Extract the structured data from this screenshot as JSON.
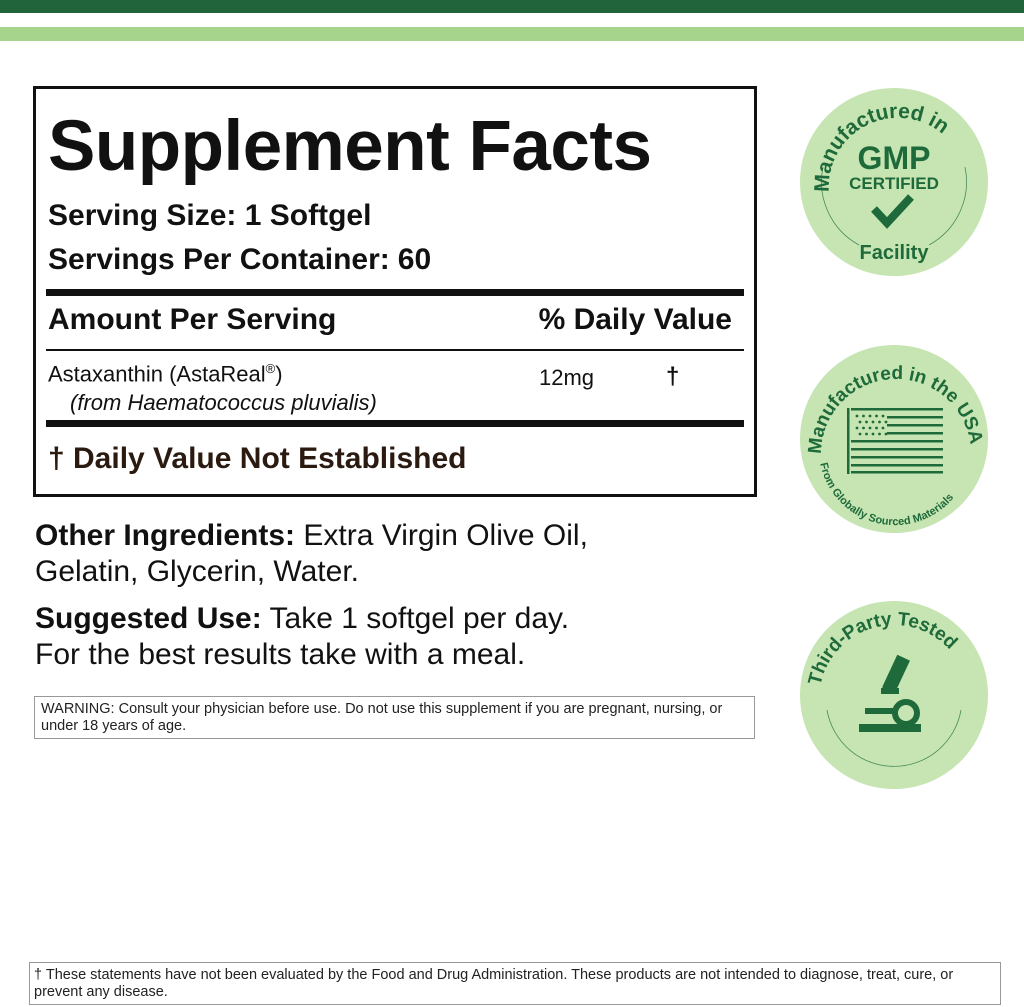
{
  "colors": {
    "dark_green": "#21633a",
    "light_green": "#a6d48c",
    "badge_fill": "#c6e5b2",
    "badge_ink": "#1f6a3a"
  },
  "facts": {
    "title": "Supplement Facts",
    "serving_size": "Serving Size: 1 Softgel",
    "servings_label": "Servings Per Container:",
    "servings_value": "60",
    "amount_header": "Amount Per Serving",
    "dv_header": "% Daily Value",
    "ingredients": [
      {
        "name": "Astaxanthin (AstaReal",
        "reg": "®",
        "name_end": ")",
        "source": "(from Haematococcus pluvialis)",
        "amount": "12mg",
        "dv": "†"
      }
    ],
    "dv_note": "† Daily Value Not Established"
  },
  "other": {
    "label": "Other Ingredients:",
    "text_1": " Extra Virgin Olive Oil,",
    "text_2": "Gelatin, Glycerin, Water."
  },
  "use": {
    "label": "Suggested Use:",
    "text_1": " Take 1 softgel per day.",
    "text_2": "For the best results take with a meal."
  },
  "warning": "WARNING: Consult your physician before use. Do not use this supplement if you are pregnant, nursing, or under 18 years of age.",
  "disclaimer": "† These statements have not been evaluated by the Food and Drug Administration. These products are not intended to diagnose, treat, cure, or prevent any disease.",
  "badges": {
    "gmp": {
      "top": "Manufactured in",
      "main": "GMP",
      "sub": "CERTIFIED",
      "bottom": "Facility",
      "icon": "checkmark-icon"
    },
    "usa": {
      "top": "Manufactured in the USA",
      "bottom": "From Globally Sourced Materials",
      "icon": "us-flag-icon"
    },
    "tested": {
      "top": "Third-Party Tested",
      "icon": "microscope-icon"
    }
  }
}
